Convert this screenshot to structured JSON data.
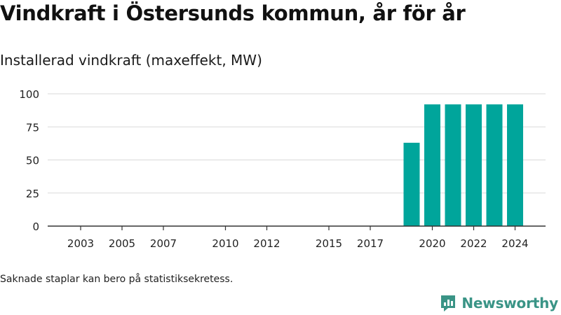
{
  "title": "Vindkraft i Östersunds kommun, år för år",
  "subtitle": "Installerad vindkraft (maxeffekt, MW)",
  "footnote": "Saknade staplar kan bero på statistiksekretess.",
  "brand": {
    "name": "Newsworthy",
    "icon": "newsworthy-logo-icon"
  },
  "colors": {
    "bar": "#00a59b",
    "grid": "#d9d9d9",
    "axis": "#333333",
    "brand": "#3a9486"
  },
  "chart_data": {
    "type": "bar",
    "categories": [
      2003,
      2004,
      2005,
      2006,
      2007,
      2008,
      2009,
      2010,
      2011,
      2012,
      2013,
      2014,
      2015,
      2016,
      2017,
      2018,
      2019,
      2020,
      2021,
      2022,
      2023,
      2024
    ],
    "values": [
      0,
      0,
      0,
      0,
      0,
      null,
      null,
      0,
      0,
      0,
      null,
      null,
      0,
      0,
      0,
      0,
      63,
      92,
      92,
      92,
      92,
      92
    ],
    "x_tick_labels": [
      "2003",
      "2005",
      "2007",
      "2010",
      "2012",
      "2015",
      "2017",
      "2020",
      "2022",
      "2024"
    ],
    "y_ticks": [
      0,
      25,
      50,
      75,
      100
    ],
    "ylim": [
      0,
      100
    ],
    "grid": true,
    "legend": "none",
    "xlabel": "",
    "ylabel": ""
  }
}
